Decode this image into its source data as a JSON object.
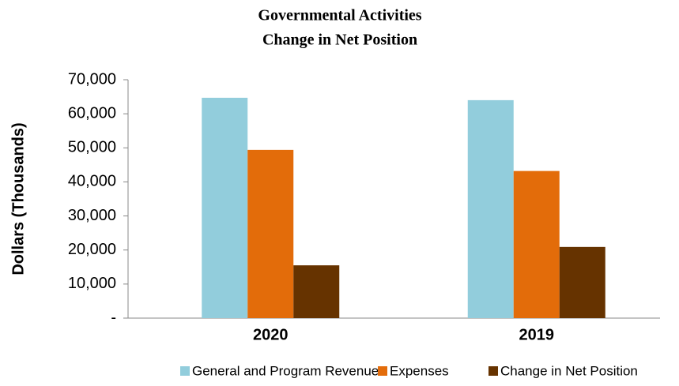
{
  "chart_data": {
    "type": "bar",
    "title": "Governmental Activities",
    "subtitle": "Change in Net Position",
    "y_label": "Dollars (Thousands)",
    "categories": [
      "2020",
      "2019"
    ],
    "series": [
      {
        "name": "General and Program Revenues",
        "color": "#92cddc",
        "values": [
          64700,
          64000
        ]
      },
      {
        "name": "Expenses",
        "color": "#e36c0a",
        "values": [
          49400,
          43200
        ]
      },
      {
        "name": "Change in Net Position",
        "color": "#663300",
        "values": [
          15500,
          20900
        ]
      }
    ],
    "ylim": [
      0,
      70000
    ],
    "yticks": [
      {
        "value": 0,
        "label": "-"
      },
      {
        "value": 10000,
        "label": "10,000"
      },
      {
        "value": 20000,
        "label": "20,000"
      },
      {
        "value": 30000,
        "label": "30,000"
      },
      {
        "value": 40000,
        "label": "40,000"
      },
      {
        "value": 50000,
        "label": "50,000"
      },
      {
        "value": 60000,
        "label": "60,000"
      },
      {
        "value": 70000,
        "label": "70,000"
      }
    ],
    "grid": false,
    "legend": "bottom"
  }
}
